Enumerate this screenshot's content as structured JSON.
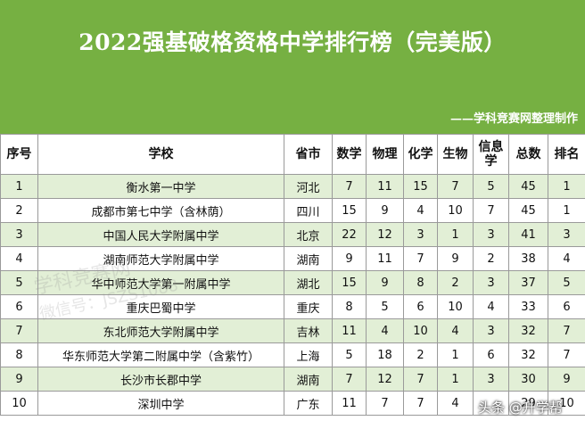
{
  "header": {
    "title": "2022强基破格资格中学排行榜（完美版）",
    "credit": "——学科竞赛网整理制作",
    "background": "#76b042"
  },
  "table": {
    "headers": {
      "index": "序号",
      "school": "学校",
      "province": "省市",
      "math": "数学",
      "physics": "物理",
      "chemistry": "化学",
      "biology": "生物",
      "informatics": "信息学",
      "total": "总数",
      "rank": "排名"
    },
    "rows": [
      {
        "index": "1",
        "school": "衡水第一中学",
        "province": "河北",
        "math": "7",
        "physics": "11",
        "chemistry": "15",
        "biology": "7",
        "informatics": "5",
        "total": "45",
        "rank": "1"
      },
      {
        "index": "2",
        "school": "成都市第七中学（含林荫）",
        "province": "四川",
        "math": "15",
        "physics": "9",
        "chemistry": "4",
        "biology": "10",
        "informatics": "7",
        "total": "45",
        "rank": "1"
      },
      {
        "index": "3",
        "school": "中国人民大学附属中学",
        "province": "北京",
        "math": "22",
        "physics": "12",
        "chemistry": "3",
        "biology": "1",
        "informatics": "3",
        "total": "41",
        "rank": "3"
      },
      {
        "index": "4",
        "school": "湖南师范大学附属中学",
        "province": "湖南",
        "math": "9",
        "physics": "11",
        "chemistry": "7",
        "biology": "9",
        "informatics": "2",
        "total": "38",
        "rank": "4"
      },
      {
        "index": "5",
        "school": "华中师范大学第一附属中学",
        "province": "湖北",
        "math": "15",
        "physics": "9",
        "chemistry": "8",
        "biology": "2",
        "informatics": "3",
        "total": "37",
        "rank": "5"
      },
      {
        "index": "6",
        "school": "重庆巴蜀中学",
        "province": "重庆",
        "math": "8",
        "physics": "5",
        "chemistry": "6",
        "biology": "10",
        "informatics": "4",
        "total": "33",
        "rank": "6"
      },
      {
        "index": "7",
        "school": "东北师范大学附属中学",
        "province": "吉林",
        "math": "11",
        "physics": "4",
        "chemistry": "10",
        "biology": "4",
        "informatics": "3",
        "total": "32",
        "rank": "7"
      },
      {
        "index": "8",
        "school": "华东师范大学第二附属中学（含紫竹）",
        "province": "上海",
        "math": "5",
        "physics": "18",
        "chemistry": "2",
        "biology": "1",
        "informatics": "6",
        "total": "32",
        "rank": "7"
      },
      {
        "index": "9",
        "school": "长沙市长郡中学",
        "province": "湖南",
        "math": "7",
        "physics": "12",
        "chemistry": "7",
        "biology": "1",
        "informatics": "3",
        "total": "30",
        "rank": "9"
      },
      {
        "index": "10",
        "school": "深圳中学",
        "province": "广东",
        "math": "11",
        "physics": "7",
        "chemistry": "7",
        "biology": "4",
        "informatics": "",
        "total": "29",
        "rank": "10"
      }
    ]
  },
  "watermark": {
    "line1": "学科竞赛网",
    "line2": "微信号：JSZS1088"
  },
  "corner_logo": "头条 @升学帮"
}
